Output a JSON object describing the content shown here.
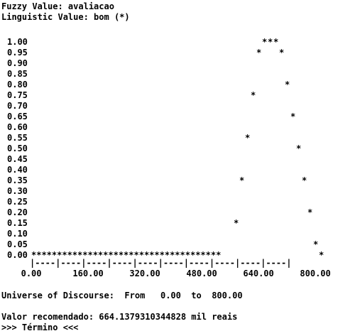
{
  "console": {
    "fuzzy_value_line": "Fuzzy Value: avaliacao",
    "linguistic_value_line": "Linguistic Value: bom (*)",
    "universe_line": "Universe of Discourse:  From   0.00  to  800.00",
    "recommendation_line": "Valor recomendado: 664.1379310344828 mil reais",
    "end_line": ">>> Término <<<"
  },
  "chart_data": {
    "type": "scatter",
    "title": "",
    "xlabel": "",
    "ylabel": "",
    "marker": "*",
    "y_ticks": [
      "1.00",
      "0.95",
      "0.90",
      "0.85",
      "0.80",
      "0.75",
      "0.70",
      "0.65",
      "0.60",
      "0.55",
      "0.50",
      "0.45",
      "0.40",
      "0.35",
      "0.30",
      "0.25",
      "0.20",
      "0.15",
      "0.10",
      "0.05",
      "0.00"
    ],
    "x_ticks": [
      "0.00",
      "160.00",
      "320.00",
      "480.00",
      "640.00",
      "800.00"
    ],
    "x_axis_text": "|----|----|----|----|----|----|----|----|----|----|",
    "xlim": [
      0,
      800
    ],
    "ylim": [
      0,
      1
    ],
    "points": [
      {
        "x": 656,
        "y": 1.0
      },
      {
        "x": 672,
        "y": 1.0
      },
      {
        "x": 688,
        "y": 1.0
      },
      {
        "x": 640,
        "y": 0.95
      },
      {
        "x": 704,
        "y": 0.95
      },
      {
        "x": 720,
        "y": 0.8
      },
      {
        "x": 624,
        "y": 0.75
      },
      {
        "x": 736,
        "y": 0.65
      },
      {
        "x": 608,
        "y": 0.55
      },
      {
        "x": 752,
        "y": 0.5
      },
      {
        "x": 592,
        "y": 0.35
      },
      {
        "x": 768,
        "y": 0.35
      },
      {
        "x": 784,
        "y": 0.2
      },
      {
        "x": 576,
        "y": 0.15
      },
      {
        "x": 800,
        "y": 0.05
      },
      {
        "x": 816,
        "y": 0.0
      }
    ],
    "zero_row_stars": "*************************************"
  }
}
